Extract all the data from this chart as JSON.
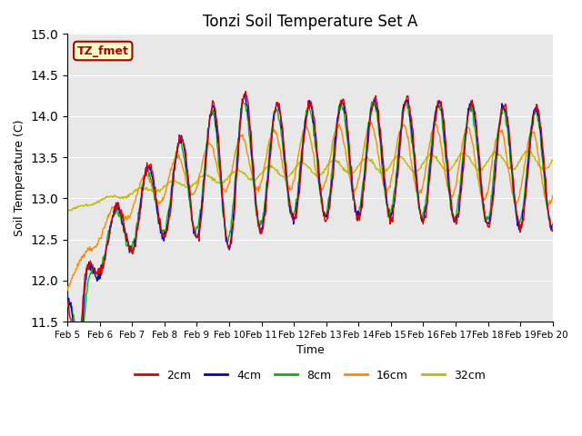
{
  "title": "Tonzi Soil Temperature Set A",
  "xlabel": "Time",
  "ylabel": "Soil Temperature (C)",
  "ylim": [
    11.5,
    15.0
  ],
  "series_labels": [
    "2cm",
    "4cm",
    "8cm",
    "16cm",
    "32cm"
  ],
  "series_colors": [
    "#dd0000",
    "#0000cc",
    "#00bb00",
    "#ff8800",
    "#bbbb00"
  ],
  "bg_color": "#e8e8e8",
  "annotation_text": "TZ_fmet",
  "annotation_bg": "#ffffcc",
  "annotation_border": "#aa0000",
  "x_tick_labels": [
    "Feb 5",
    "Feb 6",
    "Feb 7",
    "Feb 8",
    "Feb 9",
    "Feb 10",
    "Feb 11",
    "Feb 12",
    "Feb 13",
    "Feb 14",
    "Feb 15",
    "Feb 16",
    "Feb 17",
    "Feb 18",
    "Feb 19",
    "Feb 20"
  ],
  "n_points": 720
}
